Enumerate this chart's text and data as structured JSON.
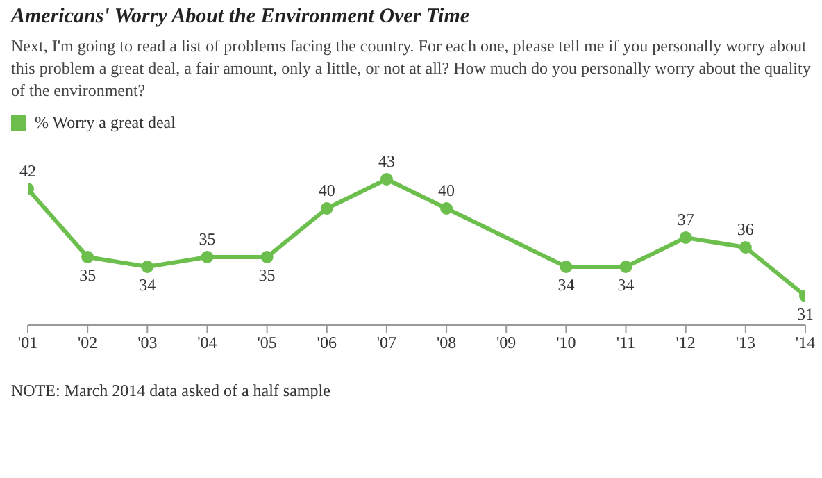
{
  "chart_data": {
    "type": "line",
    "title": "Americans' Worry About the Environment Over Time",
    "subtitle": "Next, I'm going to read a list of problems facing the country. For each one, please tell me if you personally worry about this problem a great deal, a fair amount, only a little, or not at all? How much do you personally worry about the quality of the environment?",
    "x": [
      2001,
      2002,
      2003,
      2004,
      2005,
      2006,
      2007,
      2008,
      2010,
      2011,
      2012,
      2013,
      2014
    ],
    "series": [
      {
        "name": "% Worry a great deal",
        "color": "#6cbf4c",
        "values": [
          42,
          35,
          34,
          35,
          35,
          40,
          43,
          40,
          34,
          34,
          37,
          36,
          31
        ]
      }
    ],
    "xlim": [
      2001,
      2014
    ],
    "xticks": [
      {
        "value": 2001,
        "label": "'01"
      },
      {
        "value": 2002,
        "label": "'02"
      },
      {
        "value": 2003,
        "label": "'03"
      },
      {
        "value": 2004,
        "label": "'04"
      },
      {
        "value": 2005,
        "label": "'05"
      },
      {
        "value": 2006,
        "label": "'06"
      },
      {
        "value": 2007,
        "label": "'07"
      },
      {
        "value": 2008,
        "label": "'08"
      },
      {
        "value": 2009,
        "label": "'09"
      },
      {
        "value": 2010,
        "label": "'10"
      },
      {
        "value": 2011,
        "label": "'11"
      },
      {
        "value": 2012,
        "label": "'12"
      },
      {
        "value": 2013,
        "label": "'13"
      },
      {
        "value": 2014,
        "label": "'14"
      }
    ],
    "data_labels": true,
    "marker": "circle",
    "line_style": "solid",
    "grid": false,
    "legend": "top left",
    "annotations": [
      "NOTE: March 2014 data asked of a half sample"
    ]
  }
}
